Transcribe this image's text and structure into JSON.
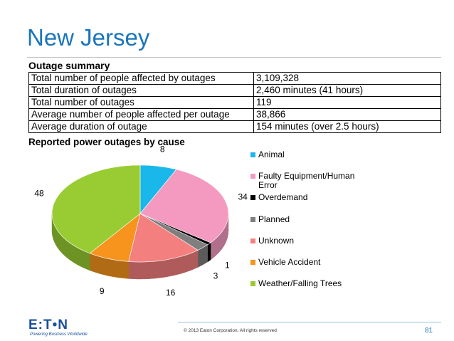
{
  "header": {
    "title": "New Jersey"
  },
  "table": {
    "heading": "Outage summary",
    "rows": [
      [
        "Total number of people affected by outages",
        "3,109,328"
      ],
      [
        "Total duration of outages",
        "2,460 minutes (41 hours)"
      ],
      [
        "Total number of outages",
        "119"
      ],
      [
        "Average number of people affected per outage",
        "38,866"
      ],
      [
        "Average duration of outage",
        "154 minutes (over 2.5 hours)"
      ]
    ]
  },
  "chart_data": {
    "type": "pie",
    "title": "Reported power outages by cause",
    "categories": [
      "Animal",
      "Faulty Equipment/Human Error",
      "Overdemand",
      "Planned",
      "Unknown",
      "Vehicle Accident",
      "Weather/Falling Trees"
    ],
    "values": [
      8,
      34,
      1,
      3,
      16,
      9,
      48
    ],
    "colors": [
      "#1ab7ea",
      "#f49ac1",
      "#000000",
      "#7f7f7f",
      "#f47f7f",
      "#f7941d",
      "#99cc33"
    ],
    "legend": "right"
  },
  "footer": {
    "logo": "E:T•N",
    "tagline": "Powering Business Worldwide",
    "copyright": "© 2013 Eaton Corporation. All rights reserved",
    "page": "81"
  }
}
